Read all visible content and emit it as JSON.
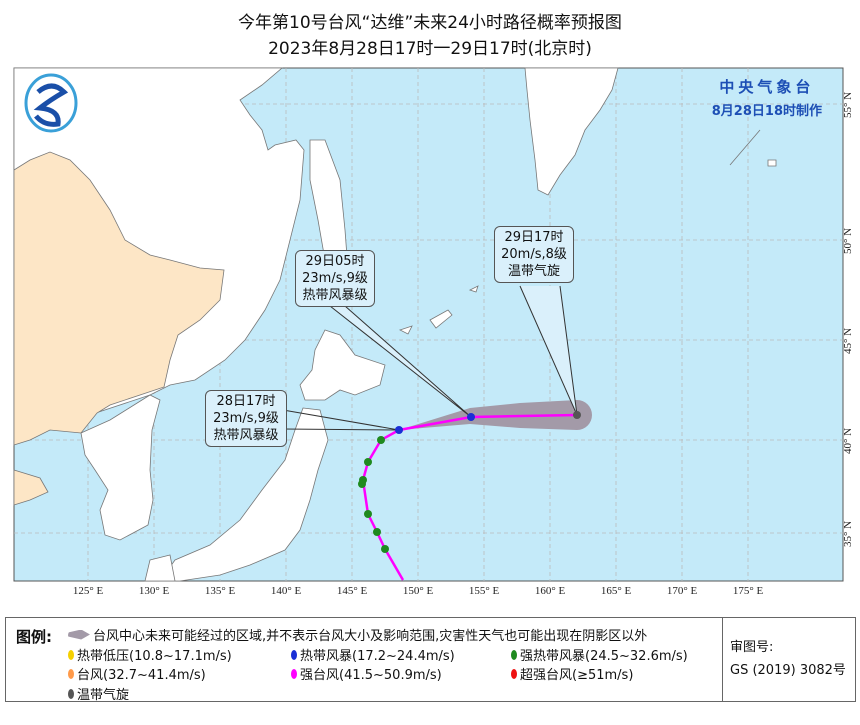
{
  "title": {
    "line1": "今年第10号台风“达维”未来24小时路径概率预报图",
    "line2": "2023年8月28日17时一29日17时(北京时)"
  },
  "agency": {
    "name": "中央气象台",
    "made": "8月28日18时制作"
  },
  "map": {
    "lon_labels": [
      "125° E",
      "130° E",
      "135° E",
      "140° E",
      "145° E",
      "150° E",
      "155° E",
      "160° E",
      "165° E",
      "170° E",
      "175° E"
    ],
    "lat_labels": [
      "55° N",
      "50° N",
      "45° N",
      "40° N",
      "35° N"
    ],
    "colors": {
      "ocean": "#c4eaf9",
      "china": "#fde6c6",
      "other_land": "#ffffff",
      "cone": "#a39aa8",
      "track": "#ff00ff"
    }
  },
  "callouts": [
    {
      "time": "28日17时",
      "wind": "23m/s,9级",
      "level": "热带风暴级"
    },
    {
      "time": "29日05时",
      "wind": "23m/s,9级",
      "level": "热带风暴级"
    },
    {
      "time": "29日17时",
      "wind": "20m/s,8级",
      "level": "温带气旋"
    }
  ],
  "legend": {
    "label": "图例:",
    "cone_text": "台风中心未来可能经过的区域,并不表示台风大小及影响范围,灾害性天气也可能出现在阴影区以外",
    "items": [
      {
        "text": "热带低压(10.8~17.1m/s)",
        "color": "#f5d000"
      },
      {
        "text": "热带风暴(17.2~24.4m/s)",
        "color": "#1a2fd6"
      },
      {
        "text": "强热带风暴(24.5~32.6m/s)",
        "color": "#1f8a1f"
      },
      {
        "text": "台风(32.7~41.4m/s)",
        "color": "#ff9a4a"
      },
      {
        "text": "强台风(41.5~50.9m/s)",
        "color": "#ff00ff"
      },
      {
        "text": "超强台风(≥51m/s)",
        "color": "#ee1111"
      },
      {
        "text": "温带气旋",
        "color": "#555555"
      }
    ],
    "review_label": "审图号:",
    "review_no": "GS (2019) 3082号"
  }
}
